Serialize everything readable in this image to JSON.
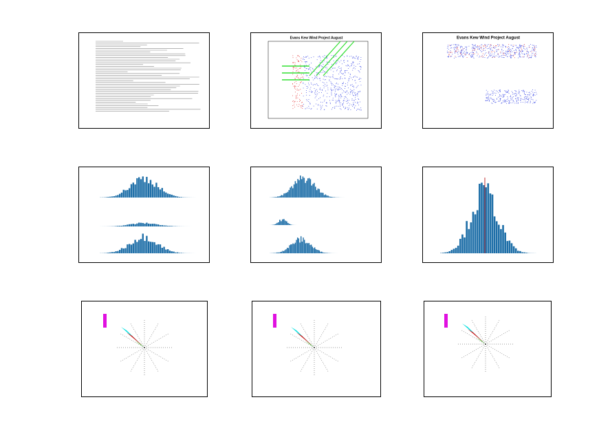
{
  "pages": [
    {
      "title": "Evans Kew Wind Project August"
    },
    {
      "title": "Evans Kew Wind Project August"
    }
  ]
}
